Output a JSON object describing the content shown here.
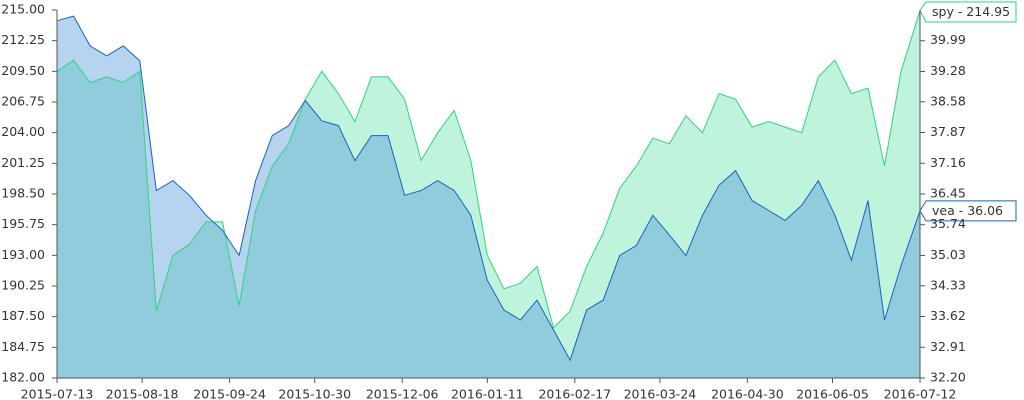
{
  "chart_data": {
    "type": "area",
    "x": [
      "2015-07-13",
      "2015-07-20",
      "2015-07-27",
      "2015-08-03",
      "2015-08-10",
      "2015-08-17",
      "2015-08-24",
      "2015-08-31",
      "2015-09-07",
      "2015-09-14",
      "2015-09-21",
      "2015-09-28",
      "2015-10-05",
      "2015-10-12",
      "2015-10-19",
      "2015-10-26",
      "2015-11-02",
      "2015-11-09",
      "2015-11-16",
      "2015-11-23",
      "2015-11-30",
      "2015-12-07",
      "2015-12-14",
      "2015-12-21",
      "2015-12-28",
      "2016-01-04",
      "2016-01-11",
      "2016-01-18",
      "2016-01-25",
      "2016-02-01",
      "2016-02-08",
      "2016-02-15",
      "2016-02-22",
      "2016-02-29",
      "2016-03-07",
      "2016-03-14",
      "2016-03-21",
      "2016-03-28",
      "2016-04-04",
      "2016-04-11",
      "2016-04-18",
      "2016-04-25",
      "2016-05-02",
      "2016-05-09",
      "2016-05-16",
      "2016-05-23",
      "2016-05-30",
      "2016-06-06",
      "2016-06-13",
      "2016-06-20",
      "2016-06-27",
      "2016-07-04",
      "2016-07-12"
    ],
    "series": [
      {
        "name": "spy",
        "color": "#2fd47f",
        "fill": "#bff3dc",
        "last_label": "spy - 214.95",
        "values": [
          209.5,
          210.5,
          208.5,
          209,
          208.5,
          209.5,
          188,
          193,
          194,
          196,
          196,
          188.5,
          197,
          201,
          203,
          207,
          209.5,
          207.5,
          205,
          209,
          209,
          207,
          201.5,
          204,
          206,
          201.5,
          193,
          190,
          190.5,
          192,
          186.5,
          188,
          192,
          195,
          199,
          201,
          203.5,
          203,
          205.5,
          204,
          207.5,
          207,
          204.5,
          205,
          204.5,
          204,
          209,
          210.5,
          207.5,
          208,
          201,
          209.5,
          214.95
        ]
      },
      {
        "name": "vea",
        "color": "#1565c0",
        "fill": "rgba(80,150,220,0.42)",
        "axis": "y2",
        "last_label": "vea - 36.06",
        "values": [
          40.45,
          40.56,
          39.87,
          39.64,
          39.87,
          39.53,
          36.53,
          36.76,
          36.42,
          35.96,
          35.61,
          35.03,
          36.76,
          37.8,
          38.03,
          38.61,
          38.14,
          38.03,
          37.22,
          37.8,
          37.8,
          36.42,
          36.53,
          36.76,
          36.53,
          35.96,
          34.46,
          33.77,
          33.54,
          34,
          33.31,
          32.61,
          33.77,
          34,
          35.03,
          35.26,
          35.96,
          35.5,
          35.03,
          35.96,
          36.65,
          36.99,
          36.3,
          36.07,
          35.84,
          36.19,
          36.76,
          35.96,
          34.92,
          36.3,
          33.54,
          34.8,
          36.06
        ]
      }
    ],
    "xlim": [
      "2015-07-13",
      "2016-07-12"
    ],
    "xticks": [
      "2015-07-13",
      "2015-08-18",
      "2015-09-24",
      "2015-10-30",
      "2015-12-06",
      "2016-01-11",
      "2016-02-17",
      "2016-03-24",
      "2016-04-30",
      "2016-06-05",
      "2016-07-12"
    ],
    "ylim": [
      182,
      215
    ],
    "yticks": [
      {
        "value": 182,
        "label": "182.00"
      },
      184.75,
      {
        "value": 187.5,
        "label": "187.50"
      },
      190.25,
      {
        "value": 193,
        "label": "193.00"
      },
      195.75,
      {
        "value": 198.5,
        "label": "198.50"
      },
      201.25,
      {
        "value": 204,
        "label": "204.00"
      },
      206.75,
      {
        "value": 209.5,
        "label": "209.50"
      },
      212.25,
      {
        "value": 215,
        "label": "215.00"
      }
    ],
    "y2lim": [
      32.2,
      40.7
    ],
    "y2ticks": [
      {
        "value": 32.2,
        "label": "32.20"
      },
      32.91,
      33.62,
      34.33,
      35.03,
      35.74,
      36.45,
      37.16,
      37.87,
      38.58,
      39.28,
      39.99
    ]
  }
}
